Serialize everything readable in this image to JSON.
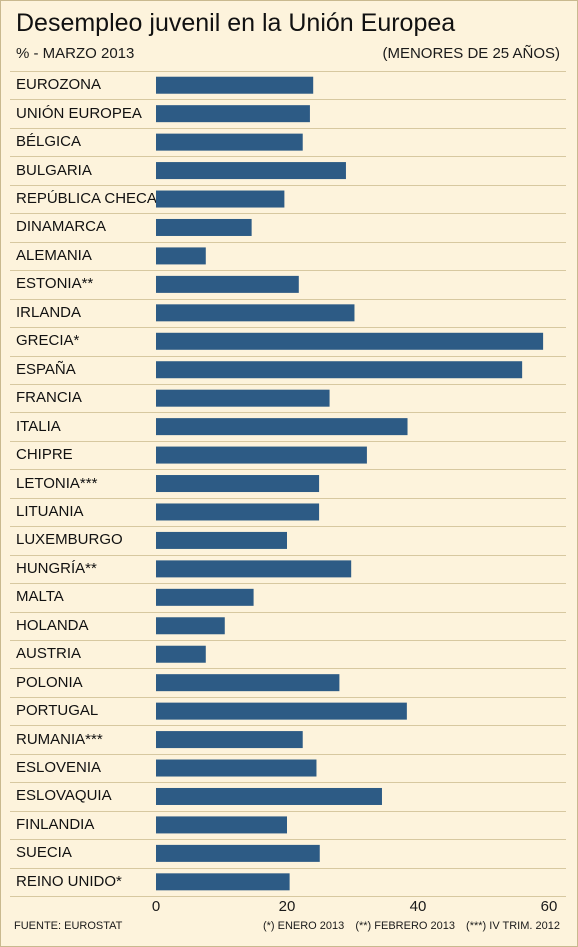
{
  "header": {
    "title": "Desempleo juvenil en la Unión Europea",
    "subtitle_left": "% - MARZO 2013",
    "subtitle_right": "(MENORES DE 25 AÑOS)"
  },
  "chart_data": {
    "type": "bar",
    "orientation": "horizontal",
    "title": "Desempleo juvenil en la Unión Europea",
    "categories": [
      "EUROZONA",
      "UNIÓN EUROPEA",
      "BÉLGICA",
      "BULGARIA",
      "REPÚBLICA CHECA",
      "DINAMARCA",
      "ALEMANIA",
      "ESTONIA**",
      "IRLANDA",
      "GRECIA*",
      "ESPAÑA",
      "FRANCIA",
      "ITALIA",
      "CHIPRE",
      "LETONIA***",
      "LITUANIA",
      "LUXEMBURGO",
      "HUNGRÍA**",
      "MALTA",
      "HOLANDA",
      "AUSTRIA",
      "POLONIA",
      "PORTUGAL",
      "RUMANIA***",
      "ESLOVENIA",
      "ESLOVAQUIA",
      "FINLANDIA",
      "SUECIA",
      "REINO UNIDO*"
    ],
    "values": [
      24.0,
      23.5,
      22.4,
      29.0,
      19.6,
      14.6,
      7.6,
      21.8,
      30.3,
      59.1,
      55.9,
      26.5,
      38.4,
      32.2,
      24.9,
      24.9,
      20.0,
      29.8,
      14.9,
      10.5,
      7.6,
      28.0,
      38.3,
      22.4,
      24.5,
      34.5,
      20.0,
      25.0,
      20.4
    ],
    "x_ticks": [
      0,
      20,
      40,
      60
    ],
    "xlim": [
      0,
      60
    ],
    "grid": false,
    "bar_color": "#2d5b85"
  },
  "footer": {
    "source": "FUENTE: EUROSTAT",
    "notes": [
      "(*) ENERO 2013",
      "(**) FEBRERO 2013",
      "(***) IV TRIM. 2012"
    ]
  }
}
